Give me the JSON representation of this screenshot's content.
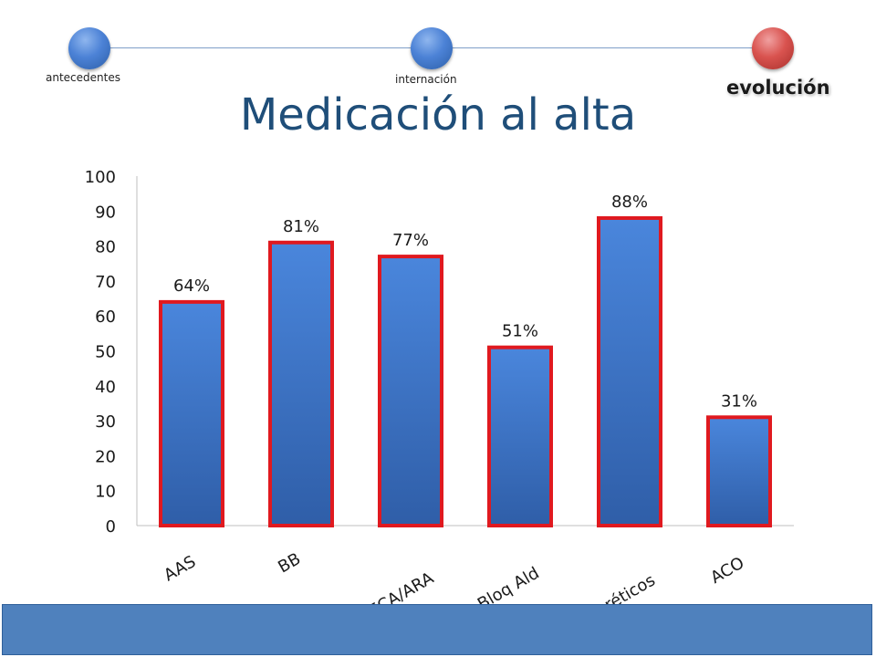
{
  "nav": {
    "steps": [
      {
        "label": "antecedentes",
        "state": "inactive",
        "color": "#4c82d6"
      },
      {
        "label": "internación",
        "state": "inactive",
        "color": "#4c82d6"
      },
      {
        "label": "evolución",
        "state": "active",
        "color": "#d9534f"
      }
    ]
  },
  "title": "Medicación al alta",
  "chart_data": {
    "type": "bar",
    "categories": [
      "AAS",
      "BB",
      "IECA/ARA",
      "Bloq Ald",
      "Diuréticos",
      "ACO"
    ],
    "values": [
      64,
      81,
      77,
      51,
      88,
      31
    ],
    "data_labels": [
      "64%",
      "81%",
      "77%",
      "51%",
      "88%",
      "31%"
    ],
    "ylim": [
      0,
      100
    ],
    "yticks": [
      0,
      10,
      20,
      30,
      40,
      50,
      60,
      70,
      80,
      90,
      100
    ],
    "grid": false,
    "legend": "none",
    "bar_color": "#3d72c4",
    "bar_border_color": "#e0191f"
  }
}
